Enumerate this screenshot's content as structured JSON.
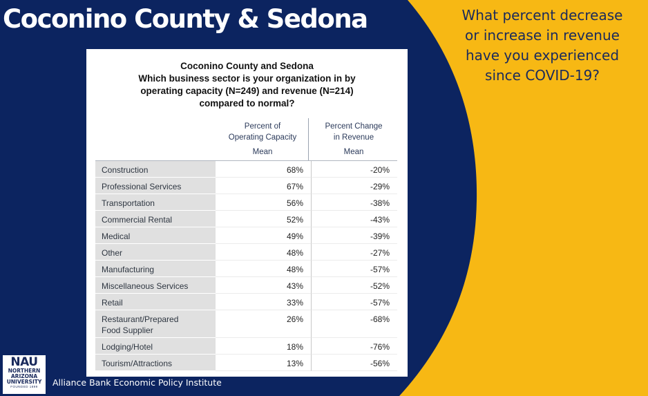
{
  "slide": {
    "title": "Coconino County & Sedona",
    "question": "What percent decrease\nor increase in revenue\nhave you experienced\nsince COVID-19?",
    "footer": "Alliance Bank Economic Policy Institute"
  },
  "colors": {
    "navy": "#0c2460",
    "gold": "#f7b814"
  },
  "logo": {
    "wordmark": "NAU",
    "line1": "NORTHERN",
    "line2": "ARIZONA",
    "line3": "UNIVERSITY",
    "line4": "FOUNDED 1899"
  },
  "table": {
    "title": "Coconino County and Sedona\nWhich business sector is your organization in by\noperating capacity (N=249) and revenue (N=214)\ncompared to normal?",
    "col1_header": "Percent of\nOperating Capacity",
    "col2_header": "Percent Change\nin Revenue",
    "col1_stat": "Mean",
    "col2_stat": "Mean",
    "rows": [
      {
        "sector": "Construction",
        "capacity": "68%",
        "revenue": "-20%"
      },
      {
        "sector": "Professional Services",
        "capacity": "67%",
        "revenue": "-29%"
      },
      {
        "sector": "Transportation",
        "capacity": "56%",
        "revenue": "-38%"
      },
      {
        "sector": "Commercial Rental",
        "capacity": "52%",
        "revenue": "-43%"
      },
      {
        "sector": "Medical",
        "capacity": "49%",
        "revenue": "-39%"
      },
      {
        "sector": "Other",
        "capacity": "48%",
        "revenue": "-27%"
      },
      {
        "sector": "Manufacturing",
        "capacity": "48%",
        "revenue": "-57%"
      },
      {
        "sector": "Miscellaneous Services",
        "capacity": "43%",
        "revenue": "-52%"
      },
      {
        "sector": "Retail",
        "capacity": "33%",
        "revenue": "-57%"
      },
      {
        "sector": "Restaurant/Prepared\nFood Supplier",
        "capacity": "26%",
        "revenue": "-68%"
      },
      {
        "sector": "Lodging/Hotel",
        "capacity": "18%",
        "revenue": "-76%"
      },
      {
        "sector": "Tourism/Attractions",
        "capacity": "13%",
        "revenue": "-56%"
      }
    ]
  }
}
